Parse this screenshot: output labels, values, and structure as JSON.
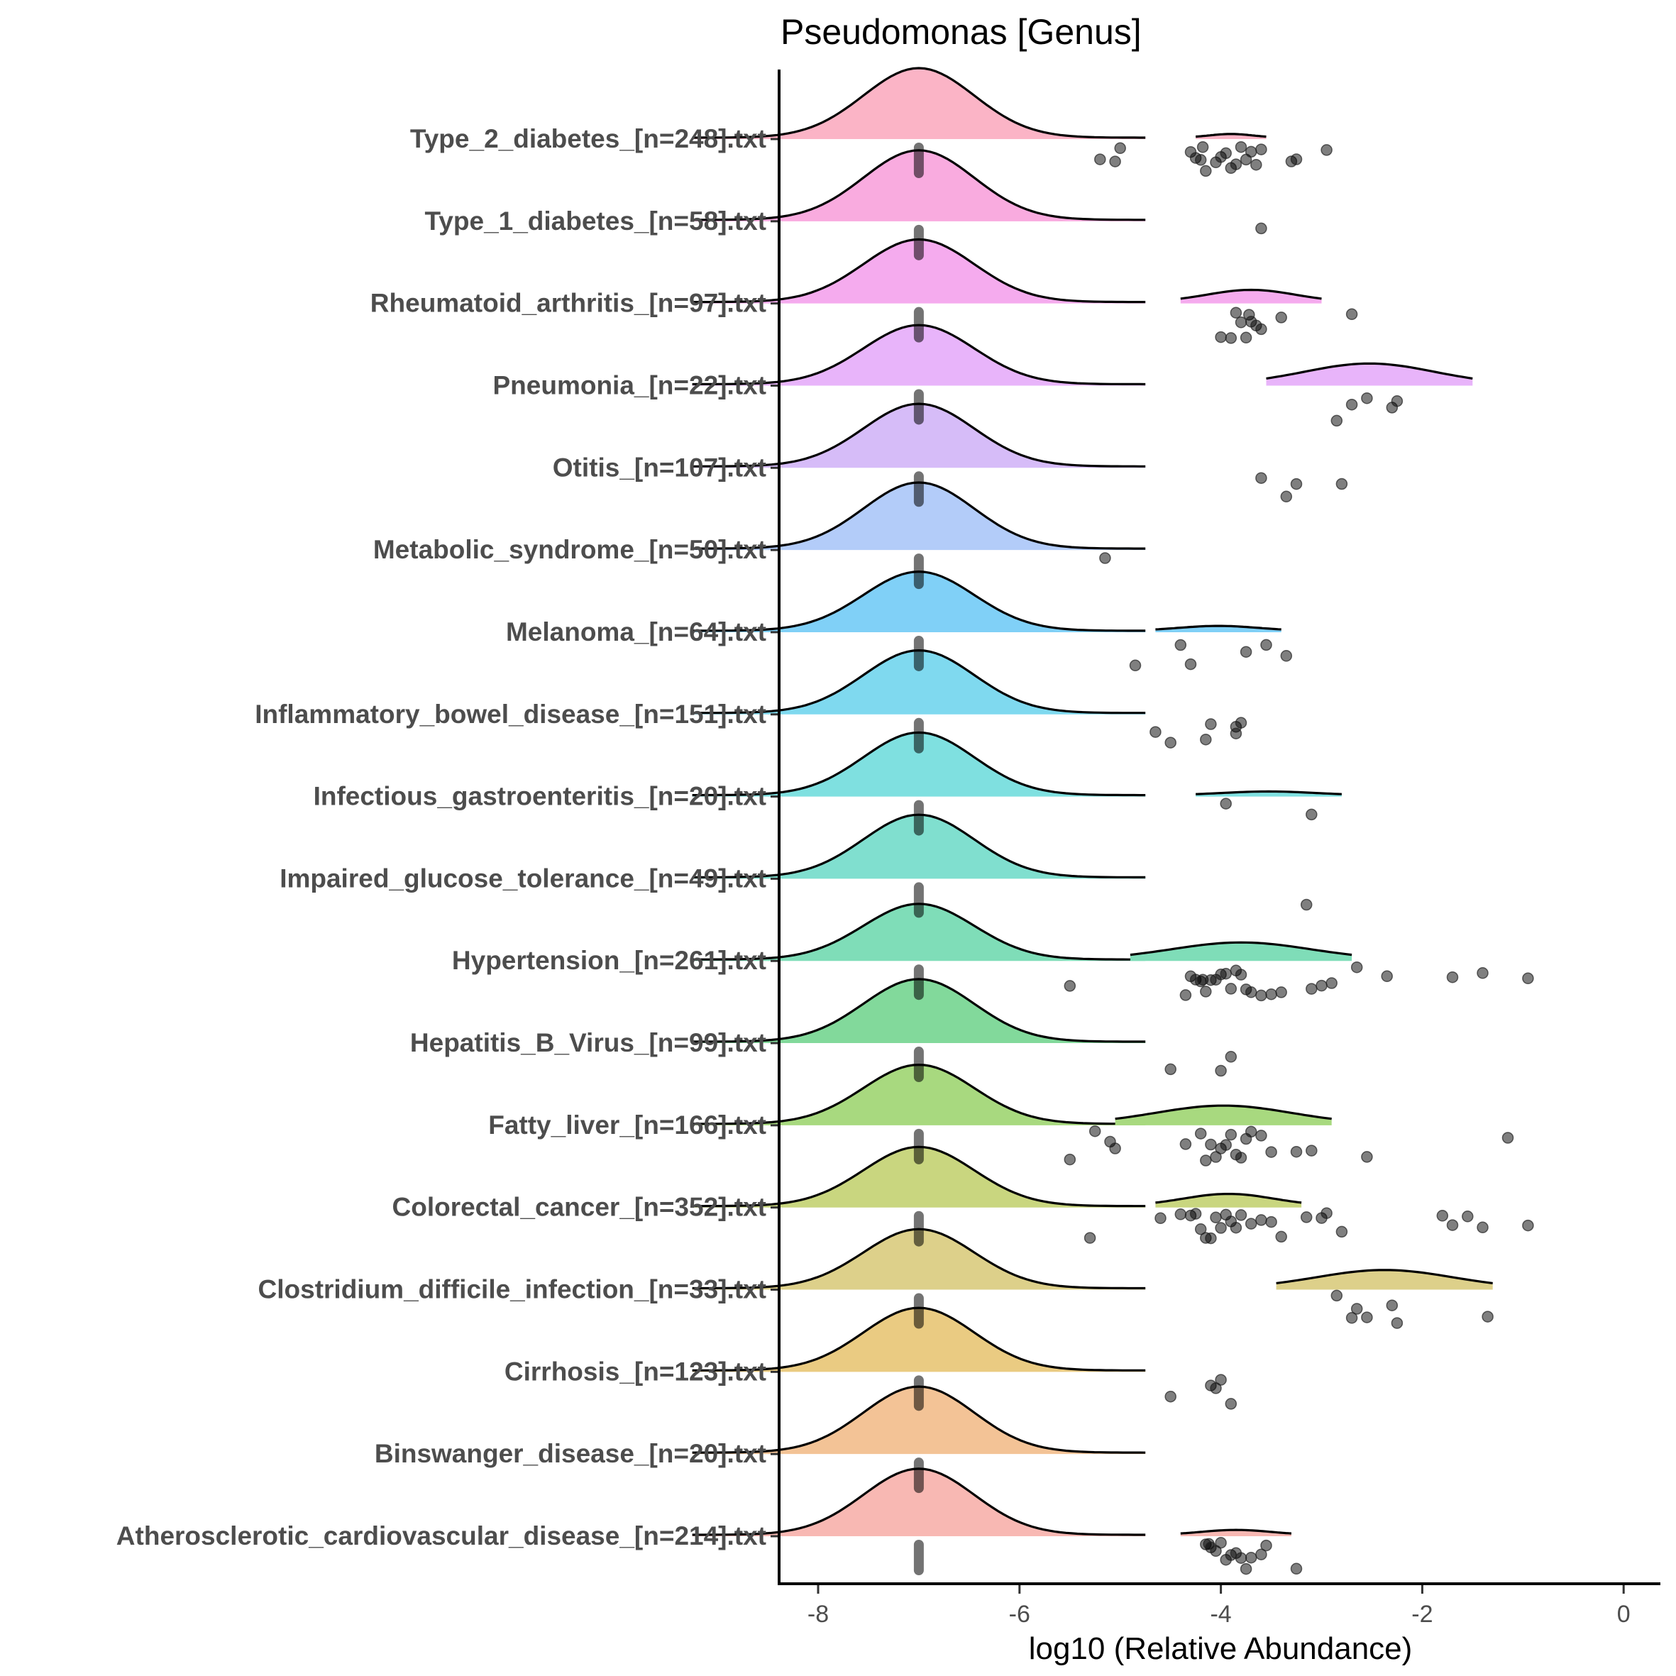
{
  "chart_data": {
    "type": "ridgeline",
    "title": "Pseudomonas [Genus]",
    "xlabel": "log10 (Relative Abundance)",
    "ylabel": "",
    "xlim": [
      -8.3,
      0.4
    ],
    "xticks": [
      -8,
      -6,
      -4,
      -2,
      0
    ],
    "xtick_labels": [
      "-8",
      "-6",
      "-4",
      "-2",
      "0"
    ],
    "grid": false,
    "legend": "none",
    "groups": [
      {
        "label": "Type_2_diabetes_[n=248].txt",
        "color": "#FBB4C6",
        "main_density": {
          "mean": -7,
          "sd": 0.55,
          "scale": 1.0
        },
        "minor_density": {
          "from": -4.25,
          "to": -3.55,
          "peak": 0.03
        },
        "points": [
          -5.2,
          -5.05,
          -5.0,
          -4.3,
          -4.25,
          -4.2,
          -4.18,
          -4.15,
          -4.05,
          -4.0,
          -3.95,
          -3.9,
          -3.85,
          -3.8,
          -3.75,
          -3.7,
          -3.65,
          -3.6,
          -3.3,
          -3.25,
          -2.95
        ]
      },
      {
        "label": "Type_1_diabetes_[n=58].txt",
        "color": "#F9ABDF",
        "main_density": {
          "mean": -7,
          "sd": 0.55,
          "scale": 1.0
        },
        "minor_density": null,
        "points": [
          -3.6
        ]
      },
      {
        "label": "Rheumatoid_arthritis_[n=97].txt",
        "color": "#F5ABEE",
        "main_density": {
          "mean": -7,
          "sd": 0.55,
          "scale": 0.9
        },
        "minor_density": {
          "from": -4.4,
          "to": -3.0,
          "peak": 0.1
        },
        "points": [
          -4.0,
          -3.9,
          -3.85,
          -3.8,
          -3.75,
          -3.72,
          -3.7,
          -3.65,
          -3.6,
          -3.4,
          -2.7
        ]
      },
      {
        "label": "Pneumonia_[n=22].txt",
        "color": "#E8B4FA",
        "main_density": {
          "mean": -7,
          "sd": 0.55,
          "scale": 0.85
        },
        "minor_density": {
          "from": -3.55,
          "to": -1.5,
          "peak": 0.17
        },
        "points": [
          -2.85,
          -2.7,
          -2.55,
          -2.3,
          -2.25
        ]
      },
      {
        "label": "Otitis_[n=107].txt",
        "color": "#D6BCF8",
        "main_density": {
          "mean": -7,
          "sd": 0.55,
          "scale": 0.9
        },
        "minor_density": null,
        "points": [
          -3.6,
          -3.35,
          -3.25,
          -2.8
        ]
      },
      {
        "label": "Metabolic_syndrome_[n=50].txt",
        "color": "#B3CCF9",
        "main_density": {
          "mean": -7,
          "sd": 0.55,
          "scale": 0.95
        },
        "minor_density": null,
        "points": [
          -5.15
        ]
      },
      {
        "label": "Melanoma_[n=64].txt",
        "color": "#80D0F7",
        "main_density": {
          "mean": -7,
          "sd": 0.55,
          "scale": 0.85
        },
        "minor_density": {
          "from": -4.65,
          "to": -3.4,
          "peak": 0.04
        },
        "points": [
          -4.85,
          -4.4,
          -4.3,
          -3.75,
          -3.55,
          -3.35
        ]
      },
      {
        "label": "Inflammatory_bowel_disease_[n=151].txt",
        "color": "#7FD9EF",
        "main_density": {
          "mean": -7,
          "sd": 0.55,
          "scale": 0.9
        },
        "minor_density": null,
        "points": [
          -4.65,
          -4.5,
          -4.15,
          -4.1,
          -3.85,
          -3.85,
          -3.8
        ]
      },
      {
        "label": "Infectious_gastroenteritis_[n=20].txt",
        "color": "#7FE0E0",
        "main_density": {
          "mean": -7,
          "sd": 0.55,
          "scale": 0.9
        },
        "minor_density": {
          "from": -4.25,
          "to": -2.8,
          "peak": 0.03
        },
        "points": [
          -3.95,
          -3.1
        ]
      },
      {
        "label": "Impaired_glucose_tolerance_[n=49].txt",
        "color": "#80DFCF",
        "main_density": {
          "mean": -7,
          "sd": 0.55,
          "scale": 0.9
        },
        "minor_density": null,
        "points": [
          -3.15
        ]
      },
      {
        "label": "Hypertension_[n=261].txt",
        "color": "#7FDDB8",
        "main_density": {
          "mean": -7,
          "sd": 0.55,
          "scale": 0.8
        },
        "minor_density": {
          "from": -4.9,
          "to": -2.7,
          "peak": 0.14
        },
        "points": [
          -5.5,
          -4.35,
          -4.3,
          -4.25,
          -4.2,
          -4.18,
          -4.15,
          -4.1,
          -4.05,
          -4.0,
          -3.95,
          -3.9,
          -3.85,
          -3.8,
          -3.75,
          -3.7,
          -3.6,
          -3.5,
          -3.4,
          -3.1,
          -3.0,
          -2.9,
          -2.65,
          -2.35,
          -1.7,
          -1.4,
          -0.95
        ]
      },
      {
        "label": "Hepatitis_B_Virus_[n=99].txt",
        "color": "#82D99B",
        "main_density": {
          "mean": -7,
          "sd": 0.55,
          "scale": 0.9
        },
        "minor_density": null,
        "points": [
          -4.5,
          -4.0,
          -3.9
        ]
      },
      {
        "label": "Fatty_liver_[n=166].txt",
        "color": "#A8D97F",
        "main_density": {
          "mean": -7,
          "sd": 0.55,
          "scale": 0.85
        },
        "minor_density": {
          "from": -5.05,
          "to": -2.9,
          "peak": 0.15
        },
        "points": [
          -5.5,
          -5.25,
          -5.1,
          -5.05,
          -4.35,
          -4.2,
          -4.15,
          -4.1,
          -4.05,
          -4.0,
          -3.95,
          -3.9,
          -3.85,
          -3.8,
          -3.75,
          -3.7,
          -3.6,
          -3.5,
          -3.25,
          -3.1,
          -2.55,
          -1.15
        ]
      },
      {
        "label": "Colorectal_cancer_[n=352].txt",
        "color": "#C9D67F",
        "main_density": {
          "mean": -7,
          "sd": 0.55,
          "scale": 0.85
        },
        "minor_density": {
          "from": -4.65,
          "to": -3.2,
          "peak": 0.1
        },
        "points": [
          -5.3,
          -4.6,
          -4.4,
          -4.3,
          -4.25,
          -4.2,
          -4.15,
          -4.1,
          -4.05,
          -4.0,
          -3.95,
          -3.9,
          -3.85,
          -3.8,
          -3.7,
          -3.6,
          -3.5,
          -3.4,
          -3.15,
          -3.0,
          -2.95,
          -2.8,
          -1.8,
          -1.7,
          -1.55,
          -1.4,
          -0.95
        ]
      },
      {
        "label": "Clostridium_difficile_infection_[n=33].txt",
        "color": "#DDD08A",
        "main_density": {
          "mean": -7,
          "sd": 0.55,
          "scale": 0.85
        },
        "minor_density": {
          "from": -3.45,
          "to": -1.3,
          "peak": 0.15
        },
        "points": [
          -2.85,
          -2.7,
          -2.65,
          -2.55,
          -2.3,
          -2.25,
          -1.35
        ]
      },
      {
        "label": "Cirrhosis_[n=123].txt",
        "color": "#EACB82",
        "main_density": {
          "mean": -7,
          "sd": 0.55,
          "scale": 0.9
        },
        "minor_density": null,
        "points": [
          -4.5,
          -4.1,
          -4.05,
          -4.0,
          -3.9
        ]
      },
      {
        "label": "Binswanger_disease_[n=20].txt",
        "color": "#F3C396",
        "main_density": {
          "mean": -7,
          "sd": 0.55,
          "scale": 0.95
        },
        "minor_density": null,
        "points": []
      },
      {
        "label": "Atherosclerotic_cardiovascular_disease_[n=214].txt",
        "color": "#F8B8B3",
        "main_density": {
          "mean": -7,
          "sd": 0.55,
          "scale": 0.95
        },
        "minor_density": {
          "from": -4.4,
          "to": -3.3,
          "peak": 0.04
        },
        "points": [
          -4.15,
          -4.12,
          -4.1,
          -4.05,
          -4.0,
          -3.95,
          -3.9,
          -3.85,
          -3.8,
          -3.75,
          -3.7,
          -3.6,
          -3.55,
          -3.25
        ]
      }
    ],
    "median_marker_x": -7
  }
}
